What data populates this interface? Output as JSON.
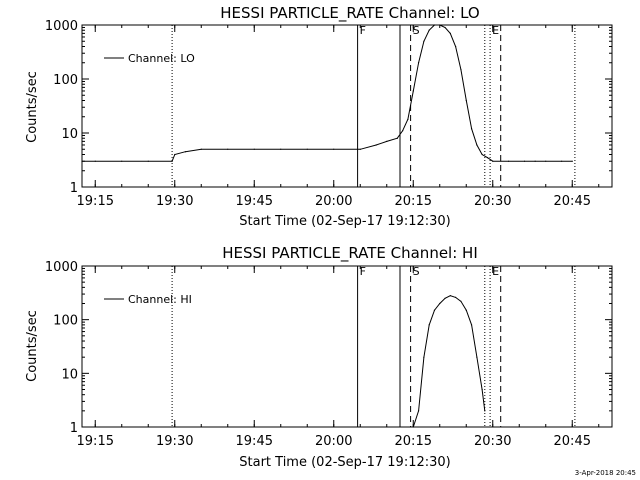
{
  "footer": "3-Apr-2018 20:45",
  "chart_data": [
    {
      "type": "line",
      "title": "HESSI PARTICLE_RATE Channel: LO",
      "xlabel": "Start Time (02-Sep-17 19:12:30)",
      "ylabel": "Counts/sec",
      "yscale": "log",
      "ylim": [
        1,
        1000
      ],
      "xlim": [
        "19:12:30",
        "20:52:30"
      ],
      "grid": false,
      "legend_position": "top-left",
      "x_ticks": [
        "19:15",
        "19:30",
        "19:45",
        "20:00",
        "20:15",
        "20:30",
        "20:45"
      ],
      "y_ticks": [
        "1",
        "10",
        "100",
        "1000"
      ],
      "markers": [
        {
          "label": "F",
          "time": "20:04:30",
          "style": "solid"
        },
        {
          "label": "",
          "time": "20:12:30",
          "style": "solid"
        },
        {
          "label": "S",
          "time": "20:14:30",
          "style": "dashed"
        },
        {
          "label": "E",
          "time": "20:29:30",
          "style": "dotted"
        },
        {
          "label": "",
          "time": "20:31:30",
          "style": "dashed"
        }
      ],
      "night_lines": [
        "19:12:30",
        "19:29:30",
        "20:28:30",
        "20:45:30"
      ],
      "series": [
        {
          "name": "Channel: LO",
          "x": [
            "19:12:30",
            "19:15:00",
            "19:20:00",
            "19:25:00",
            "19:29:30",
            "19:30:00",
            "19:32:00",
            "19:35:00",
            "19:40:00",
            "19:45:00",
            "19:50:00",
            "19:55:00",
            "20:00:00",
            "20:05:00",
            "20:08:00",
            "20:10:00",
            "20:12:00",
            "20:13:00",
            "20:14:00",
            "20:15:00",
            "20:16:00",
            "20:17:00",
            "20:18:00",
            "20:19:00",
            "20:20:00",
            "20:21:00",
            "20:22:00",
            "20:23:00",
            "20:24:00",
            "20:25:00",
            "20:26:00",
            "20:27:00",
            "20:28:00",
            "20:29:00",
            "20:30:00",
            "20:33:00",
            "20:36:00",
            "20:38:00",
            "20:40:00",
            "20:43:00",
            "20:45:00"
          ],
          "y": [
            3,
            3,
            3,
            3,
            3,
            4,
            4.5,
            5,
            5,
            5,
            5,
            5,
            5,
            5,
            6,
            7,
            8,
            11,
            18,
            60,
            200,
            500,
            800,
            1000,
            1000,
            900,
            700,
            400,
            150,
            40,
            12,
            6,
            4,
            3.5,
            3,
            3,
            3,
            3,
            3,
            3,
            3
          ]
        }
      ]
    },
    {
      "type": "line",
      "title": "HESSI PARTICLE_RATE Channel: HI",
      "xlabel": "Start Time (02-Sep-17 19:12:30)",
      "ylabel": "Counts/sec",
      "yscale": "log",
      "ylim": [
        1,
        1000
      ],
      "xlim": [
        "19:12:30",
        "20:52:30"
      ],
      "grid": false,
      "legend_position": "top-left",
      "x_ticks": [
        "19:15",
        "19:30",
        "19:45",
        "20:00",
        "20:15",
        "20:30",
        "20:45"
      ],
      "y_ticks": [
        "1",
        "10",
        "100",
        "1000"
      ],
      "markers": [
        {
          "label": "F",
          "time": "20:04:30",
          "style": "solid"
        },
        {
          "label": "",
          "time": "20:12:30",
          "style": "solid"
        },
        {
          "label": "S",
          "time": "20:14:30",
          "style": "dashed"
        },
        {
          "label": "E",
          "time": "20:29:30",
          "style": "dotted"
        },
        {
          "label": "",
          "time": "20:31:30",
          "style": "dashed"
        }
      ],
      "night_lines": [
        "19:12:30",
        "19:29:30",
        "20:28:30",
        "20:45:30"
      ],
      "series": [
        {
          "name": "Channel: HI",
          "x": [
            "20:15:00",
            "20:16:00",
            "20:17:00",
            "20:18:00",
            "20:19:00",
            "20:20:00",
            "20:21:00",
            "20:22:00",
            "20:23:00",
            "20:24:00",
            "20:25:00",
            "20:26:00",
            "20:27:00",
            "20:28:00",
            "20:28:30"
          ],
          "y": [
            1,
            2,
            20,
            80,
            150,
            200,
            250,
            280,
            260,
            220,
            150,
            80,
            20,
            5,
            2
          ]
        }
      ]
    }
  ]
}
